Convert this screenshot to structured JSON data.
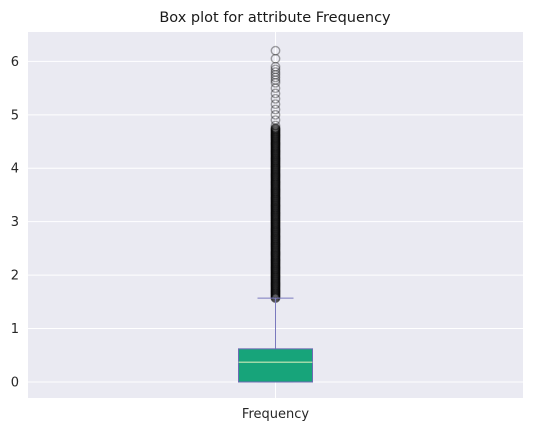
{
  "chart_data": {
    "type": "box",
    "title": "Box plot for attribute Frequency",
    "categories": [
      "Frequency"
    ],
    "xlabel": "",
    "ylabel": "",
    "ylim": [
      -0.3,
      6.55
    ],
    "yticks": [
      0,
      1,
      2,
      3,
      4,
      5,
      6
    ],
    "grid": true,
    "legend": "none",
    "boxes": [
      {
        "name": "Frequency",
        "q1": 0.0,
        "median": 0.37,
        "q3": 0.62,
        "whisker_low": 0.0,
        "whisker_high": 1.57,
        "outliers_dense_range": [
          1.57,
          4.75
        ],
        "outliers_sparse": [
          4.8,
          4.9,
          5.0,
          5.1,
          5.2,
          5.3,
          5.4,
          5.5,
          5.6,
          5.65,
          5.7,
          5.75,
          5.8,
          5.85,
          5.9,
          6.05,
          6.2
        ]
      }
    ],
    "colors": {
      "background": "#EAEAF2",
      "grid": "#FFFFFF",
      "box_fill": "#17A47A",
      "box_edge": "#6D6BB3",
      "median_line": "#9FD8A8",
      "whisker": "#7A79BE",
      "outlier_edge": "#000000"
    }
  }
}
